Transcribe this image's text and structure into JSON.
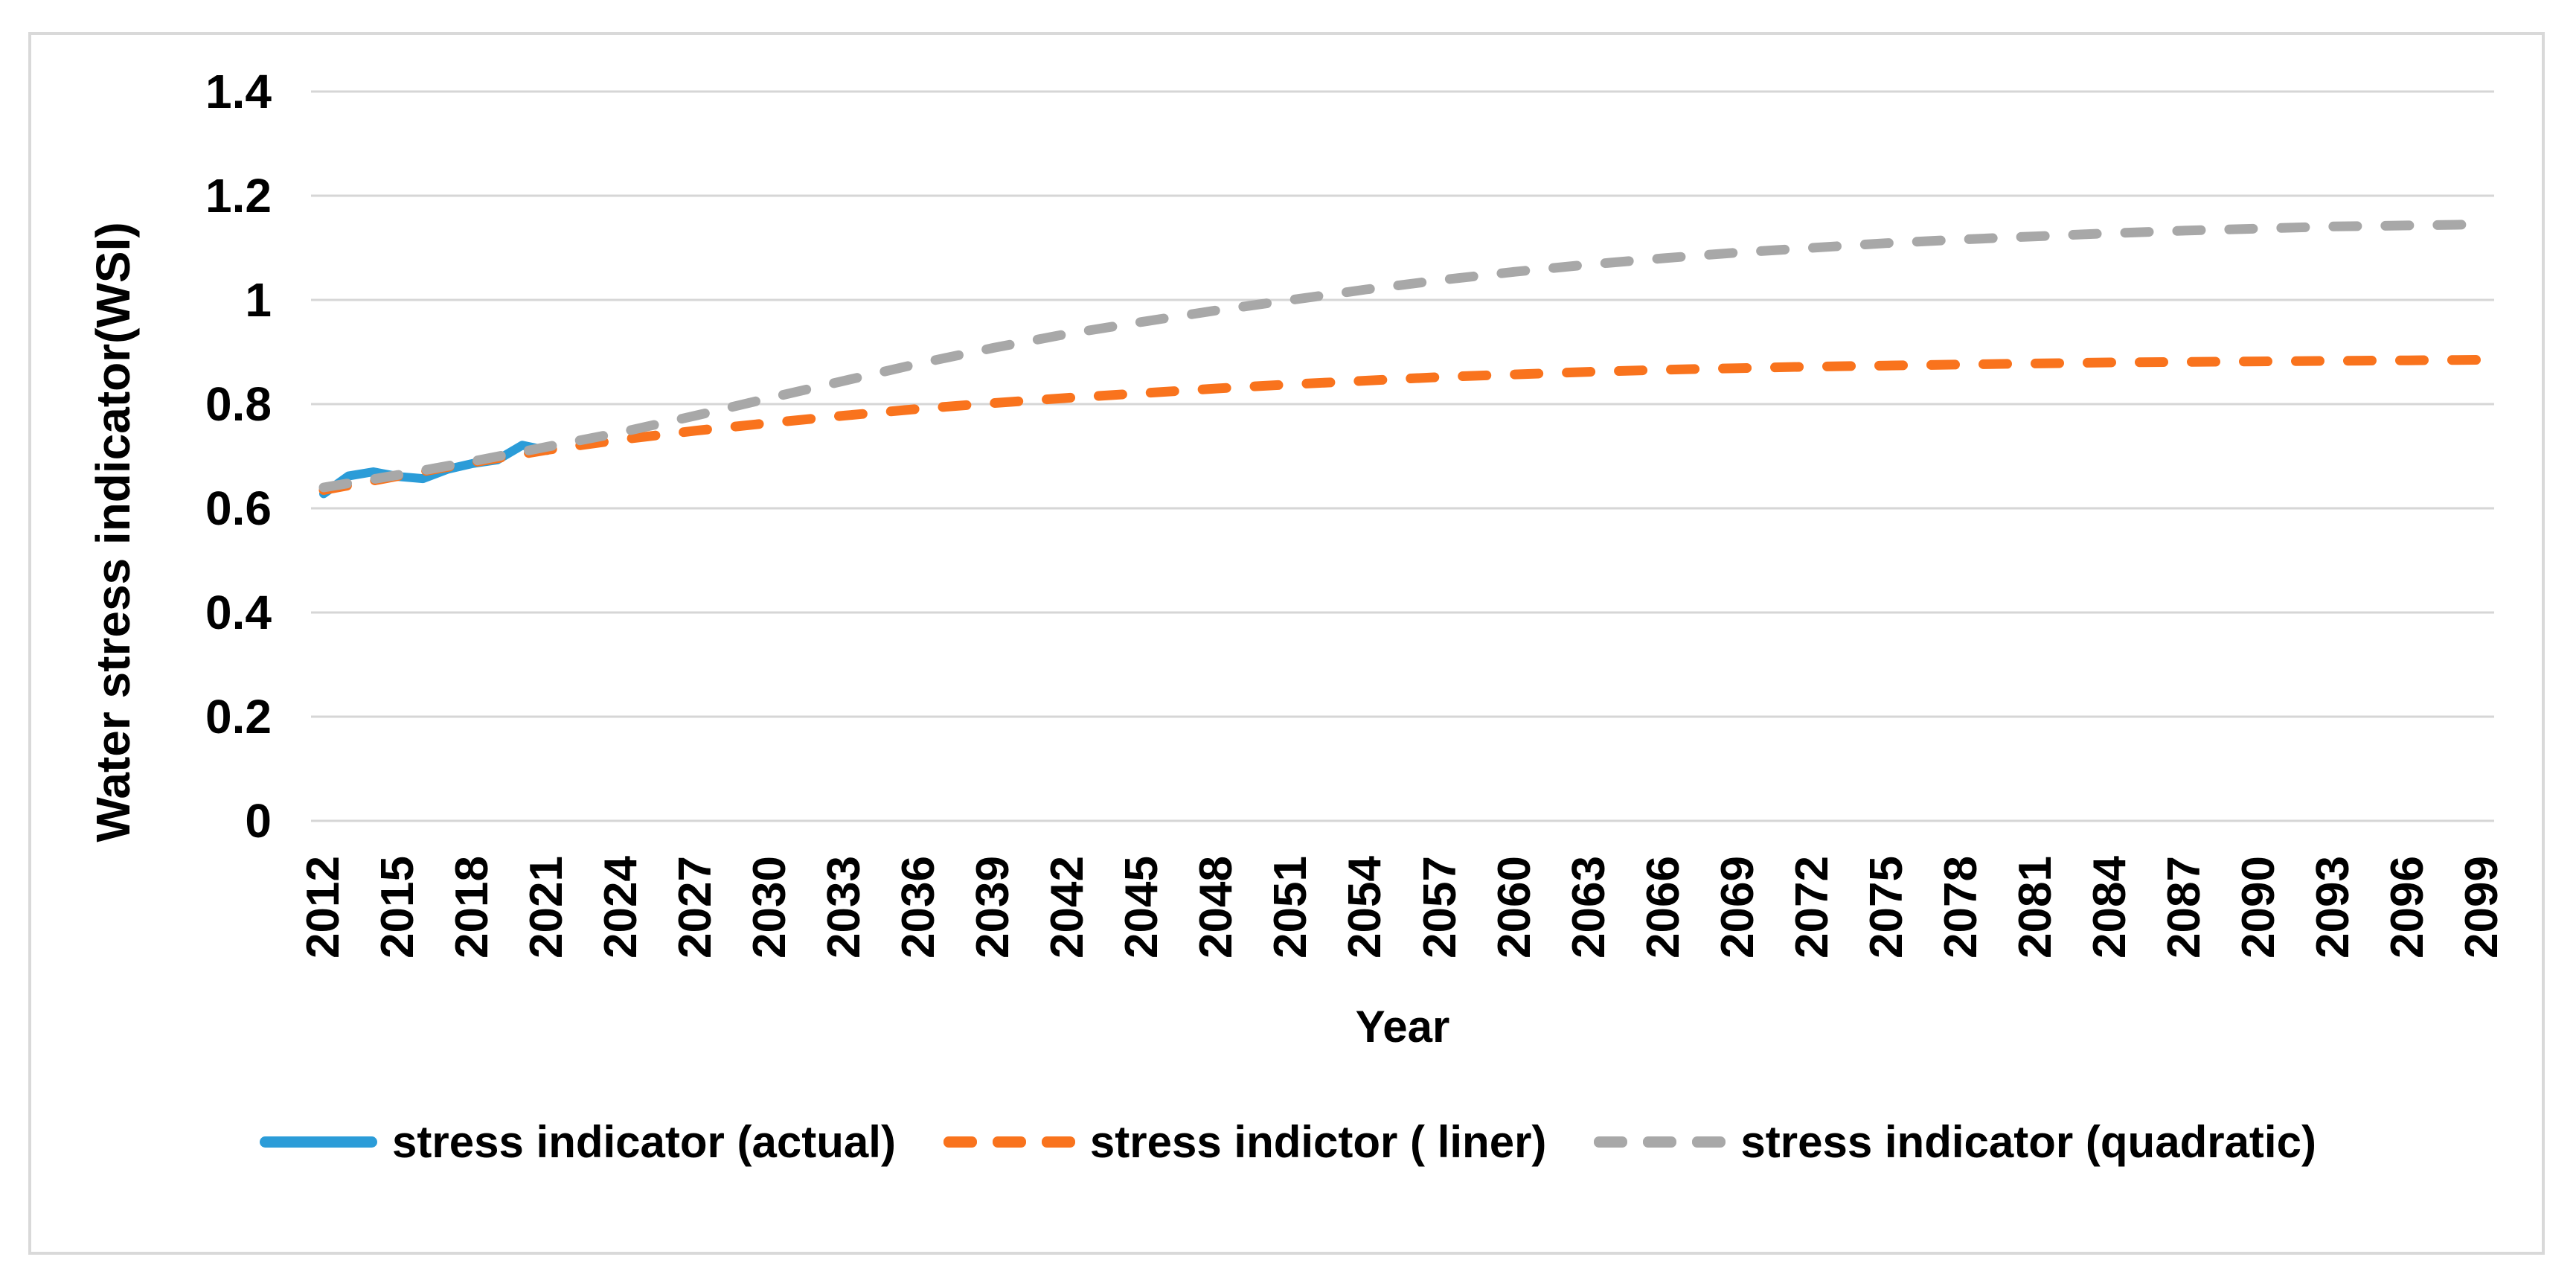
{
  "figure": {
    "background": "#ffffff",
    "border_color": "#d9d9d9"
  },
  "chart_data": {
    "type": "line",
    "title": "",
    "xlabel": "Year",
    "ylabel": "Water stress indicator(WSI)",
    "x_range": [
      2012,
      2099
    ],
    "ylim": [
      0,
      1.4
    ],
    "grid": "horizontal-only",
    "gridline_color": "#d6d6d6",
    "text_color": "#000000",
    "legend_position": "bottom-center",
    "y_ticks": [
      0,
      0.2,
      0.4,
      0.6,
      0.8,
      1,
      1.2,
      1.4
    ],
    "y_tick_labels": [
      "0",
      "0.2",
      "0.4",
      "0.6",
      "0.8",
      "1",
      "1.2",
      "1.4"
    ],
    "x_tick_labels": [
      "2012",
      "2015",
      "2018",
      "2021",
      "2024",
      "2027",
      "2030",
      "2033",
      "2036",
      "2039",
      "2042",
      "2045",
      "2048",
      "2051",
      "2054",
      "2057",
      "2060",
      "2063",
      "2066",
      "2069",
      "2072",
      "2075",
      "2078",
      "2081",
      "2084",
      "2087",
      "2090",
      "2093",
      "2096",
      "2099"
    ],
    "series": [
      {
        "name": "stress indicator (actual)",
        "color": "#2b9cd8",
        "dash": "solid",
        "x": [
          2012,
          2013,
          2014,
          2015,
          2016,
          2017,
          2018,
          2019,
          2020,
          2021
        ],
        "values": [
          0.628,
          0.662,
          0.67,
          0.661,
          0.657,
          0.675,
          0.686,
          0.693,
          0.721,
          0.711
        ]
      },
      {
        "name": "stress indictor ( liner)",
        "color": "#f9731d",
        "dash": "dashed",
        "x": [
          2012,
          2015,
          2018,
          2021,
          2024,
          2027,
          2030,
          2033,
          2036,
          2039,
          2042,
          2045,
          2048,
          2051,
          2054,
          2057,
          2060,
          2063,
          2066,
          2069,
          2072,
          2075,
          2078,
          2081,
          2084,
          2087,
          2090,
          2093,
          2096,
          2099
        ],
        "values": [
          0.635,
          0.662,
          0.688,
          0.712,
          0.732,
          0.749,
          0.764,
          0.778,
          0.791,
          0.802,
          0.812,
          0.821,
          0.83,
          0.838,
          0.845,
          0.852,
          0.857,
          0.862,
          0.866,
          0.869,
          0.872,
          0.874,
          0.876,
          0.878,
          0.88,
          0.881,
          0.882,
          0.883,
          0.884,
          0.885
        ]
      },
      {
        "name": "stress indicator (quadratic)",
        "color": "#a8a8a8",
        "dash": "dashed",
        "x": [
          2012,
          2015,
          2018,
          2021,
          2024,
          2027,
          2030,
          2033,
          2036,
          2039,
          2042,
          2045,
          2048,
          2051,
          2054,
          2057,
          2060,
          2063,
          2066,
          2069,
          2072,
          2075,
          2078,
          2081,
          2084,
          2087,
          2090,
          2093,
          2096,
          2099
        ],
        "values": [
          0.64,
          0.664,
          0.69,
          0.718,
          0.746,
          0.778,
          0.812,
          0.845,
          0.878,
          0.908,
          0.935,
          0.958,
          0.98,
          1.0,
          1.02,
          1.038,
          1.054,
          1.068,
          1.08,
          1.091,
          1.1,
          1.109,
          1.116,
          1.122,
          1.128,
          1.133,
          1.137,
          1.141,
          1.143,
          1.145
        ]
      }
    ]
  }
}
